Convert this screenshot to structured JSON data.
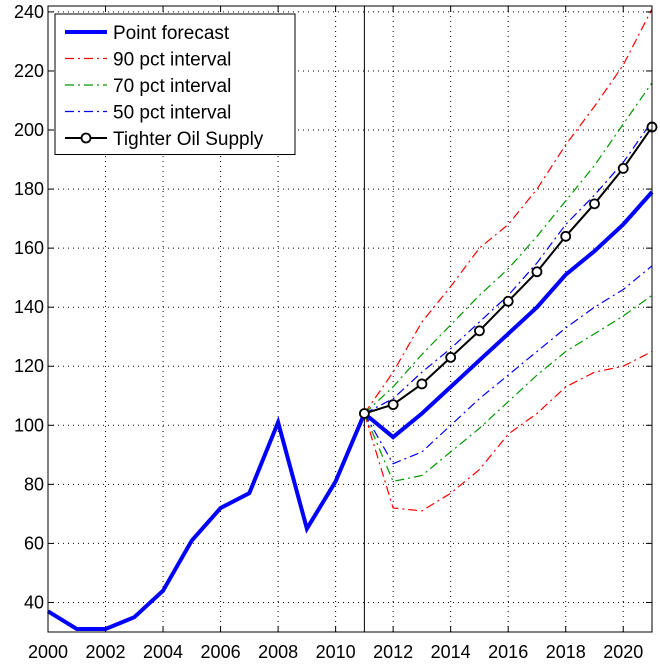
{
  "chart_data": {
    "type": "line",
    "title": "",
    "xlabel": "",
    "ylabel": "",
    "xlim": [
      2000,
      2021
    ],
    "ylim": [
      30,
      242
    ],
    "grid": true,
    "legend_position": "top-left",
    "vertical_marker_x": 2011,
    "x_ticks": [
      "2000",
      "2002",
      "2004",
      "2006",
      "2008",
      "2010",
      "2012",
      "2014",
      "2016",
      "2018",
      "2020"
    ],
    "y_ticks": [
      "40",
      "60",
      "80",
      "100",
      "120",
      "140",
      "160",
      "180",
      "200",
      "220",
      "240"
    ],
    "series": [
      {
        "name": "Point forecast",
        "color": "#0000ff",
        "style": "solid",
        "x": [
          2000,
          2001,
          2002,
          2003,
          2004,
          2005,
          2006,
          2007,
          2008,
          2009,
          2010,
          2011,
          2012,
          2013,
          2014,
          2015,
          2016,
          2017,
          2018,
          2019,
          2020,
          2021
        ],
        "values": [
          37,
          31,
          31,
          35,
          44,
          61,
          72,
          77,
          101,
          65,
          81,
          104,
          96,
          104,
          113,
          122,
          131,
          140,
          151,
          159,
          168,
          179
        ]
      },
      {
        "name": "90 pct interval",
        "color": "#ff0000",
        "style": "dashdot",
        "bands": [
          {
            "x": [
              2011,
              2012,
              2013,
              2014,
              2015,
              2016,
              2017,
              2018,
              2019,
              2020,
              2021
            ],
            "values": [
              104,
              118,
              135,
              147,
              160,
              168,
              180,
              195,
              208,
              222,
              241
            ]
          },
          {
            "x": [
              2011,
              2012,
              2013,
              2014,
              2015,
              2016,
              2017,
              2018,
              2019,
              2020,
              2021
            ],
            "values": [
              104,
              72,
              71,
              77,
              85,
              97,
              104,
              113,
              118,
              120,
              125
            ]
          }
        ]
      },
      {
        "name": "70 pct interval",
        "color": "#009900",
        "style": "dashdot",
        "bands": [
          {
            "x": [
              2011,
              2012,
              2013,
              2014,
              2015,
              2016,
              2017,
              2018,
              2019,
              2020,
              2021
            ],
            "values": [
              104,
              113,
              124,
              134,
              144,
              153,
              164,
              176,
              188,
              202,
              216
            ]
          },
          {
            "x": [
              2011,
              2012,
              2013,
              2014,
              2015,
              2016,
              2017,
              2018,
              2019,
              2020,
              2021
            ],
            "values": [
              104,
              81,
              83,
              91,
              99,
              108,
              117,
              125,
              131,
              137,
              144
            ]
          }
        ]
      },
      {
        "name": "50 pct interval",
        "color": "#0000ff",
        "style": "dashdot",
        "bands": [
          {
            "x": [
              2011,
              2012,
              2013,
              2014,
              2015,
              2016,
              2017,
              2018,
              2019,
              2020,
              2021
            ],
            "values": [
              104,
              109,
              118,
              126,
              135,
              144,
              155,
              168,
              178,
              189,
              203
            ]
          },
          {
            "x": [
              2011,
              2012,
              2013,
              2014,
              2015,
              2016,
              2017,
              2018,
              2019,
              2020,
              2021
            ],
            "values": [
              104,
              87,
              91,
              100,
              109,
              117,
              125,
              133,
              140,
              146,
              154
            ]
          }
        ]
      },
      {
        "name": "Tighter Oil Supply",
        "color": "#000000",
        "style": "solid-marker",
        "x": [
          2011,
          2012,
          2013,
          2014,
          2015,
          2016,
          2017,
          2018,
          2019,
          2020,
          2021
        ],
        "values": [
          104,
          107,
          114,
          123,
          132,
          142,
          152,
          164,
          175,
          187,
          201
        ]
      }
    ]
  }
}
